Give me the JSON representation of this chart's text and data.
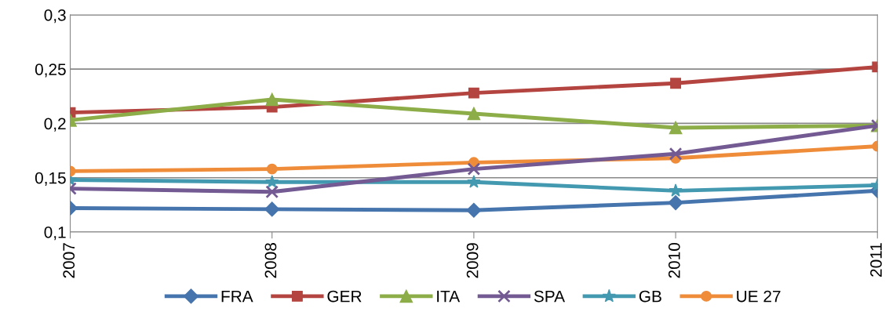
{
  "chart_data": {
    "type": "line",
    "categories": [
      "2007",
      "2008",
      "2009",
      "2010",
      "2011"
    ],
    "series": [
      {
        "name": "FRA",
        "color": "#4674ad",
        "marker": "diamond",
        "values": [
          0.122,
          0.121,
          0.12,
          0.127,
          0.138
        ]
      },
      {
        "name": "GER",
        "color": "#b4443f",
        "marker": "square",
        "values": [
          0.21,
          0.215,
          0.228,
          0.237,
          0.252
        ]
      },
      {
        "name": "ITA",
        "color": "#8cad48",
        "marker": "triangle",
        "values": [
          0.203,
          0.222,
          0.209,
          0.196,
          0.198
        ]
      },
      {
        "name": "SPA",
        "color": "#735a92",
        "marker": "cross",
        "values": [
          0.14,
          0.137,
          0.158,
          0.172,
          0.198
        ]
      },
      {
        "name": "GB",
        "color": "#4399b0",
        "marker": "star",
        "values": [
          0.148,
          0.146,
          0.146,
          0.138,
          0.143
        ]
      },
      {
        "name": "UE 27",
        "color": "#ef8c3a",
        "marker": "circle",
        "values": [
          0.156,
          0.158,
          0.164,
          0.168,
          0.179
        ]
      }
    ],
    "ylim": [
      0.1,
      0.3
    ],
    "yticks": [
      {
        "value": 0.1,
        "label": "0,1"
      },
      {
        "value": 0.15,
        "label": "0,15"
      },
      {
        "value": 0.2,
        "label": "0,2"
      },
      {
        "value": 0.25,
        "label": "0,25"
      },
      {
        "value": 0.3,
        "label": "0,3"
      }
    ],
    "grid": "y",
    "legend": "bottom",
    "line_style": "solid"
  }
}
